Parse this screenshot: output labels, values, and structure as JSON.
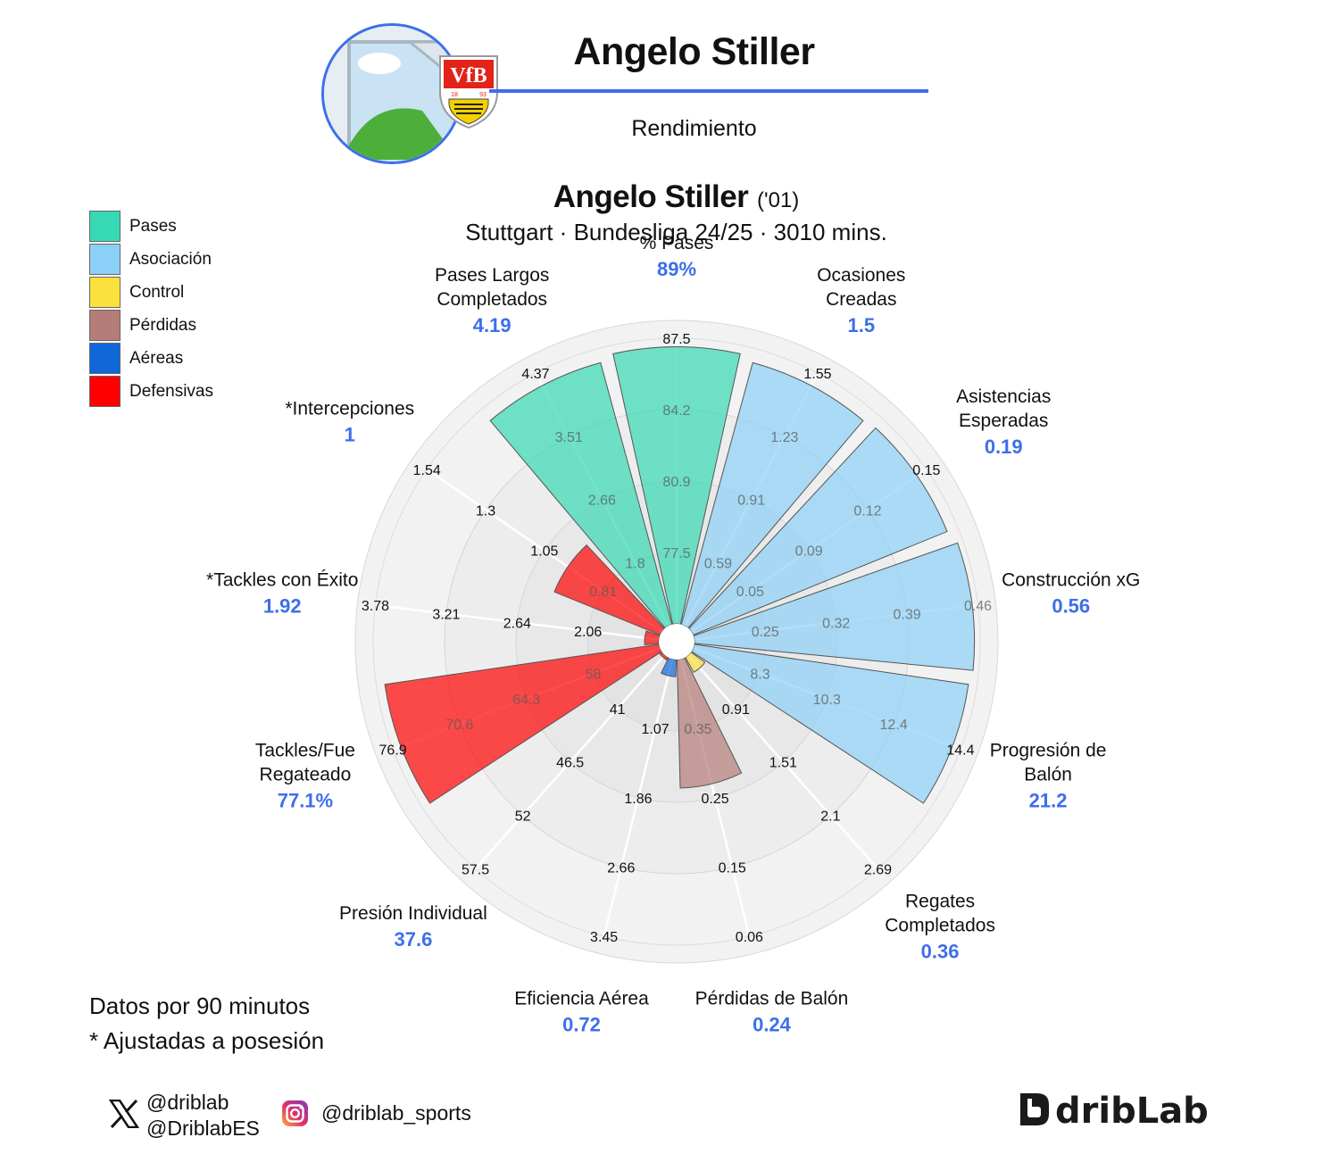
{
  "header": {
    "player_name": "Angelo Stiller",
    "section": "Rendimiento"
  },
  "chart_info": {
    "player_name": "Angelo Stiller",
    "birth_year": "('01)",
    "subtitle": "Stuttgart · Bundesliga 24/25 · 3010 mins."
  },
  "legend": [
    {
      "label": "Pases",
      "color": "#36d9b4"
    },
    {
      "label": "Asociación",
      "color": "#8bd0f7"
    },
    {
      "label": "Control",
      "color": "#fce03c"
    },
    {
      "label": "Pérdidas",
      "color": "#b57c78"
    },
    {
      "label": "Aéreas",
      "color": "#0f67da"
    },
    {
      "label": "Defensivas",
      "color": "#ff0000"
    }
  ],
  "notes": {
    "per90": "Datos por 90 minutos",
    "adjusted": "* Ajustadas a posesión"
  },
  "social": {
    "x_handle_1": "@driblab",
    "x_handle_2": "@DriblabES",
    "instagram": "@driblab_sports",
    "brand": "dribLab"
  },
  "chart_data": {
    "type": "polar-bar",
    "value_color": "#3d6fea",
    "categories": [
      {
        "label": [
          "% Pases"
        ],
        "value": "89%",
        "group": "Pases",
        "percentile": 97,
        "ticks": [
          "77.5",
          "80.9",
          "84.2",
          "87.5"
        ]
      },
      {
        "label": [
          "Ocasiones",
          "Creadas"
        ],
        "value": "1.5",
        "group": "Asociación",
        "percentile": 95,
        "ticks": [
          "0.59",
          "0.91",
          "1.23",
          "1.55"
        ]
      },
      {
        "label": [
          "Asistencias",
          "Esperadas"
        ],
        "value": "0.19",
        "group": "Asociación",
        "percentile": 96,
        "ticks": [
          "0.05",
          "0.09",
          "0.12",
          "0.15"
        ]
      },
      {
        "label": [
          "Construcción xG"
        ],
        "value": "0.56",
        "group": "Asociación",
        "percentile": 98,
        "ticks": [
          "0.25",
          "0.32",
          "0.39",
          "0.46"
        ]
      },
      {
        "label": [
          "Progresión de",
          "Balón"
        ],
        "value": "21.2",
        "group": "Asociación",
        "percentile": 97,
        "ticks": [
          "8.3",
          "10.3",
          "12.4",
          "14.4"
        ]
      },
      {
        "label": [
          "Regates",
          "Completados"
        ],
        "value": "0.36",
        "group": "Control",
        "percentile": 6,
        "ticks": [
          "0.91",
          "1.51",
          "2.1",
          "2.69"
        ]
      },
      {
        "label": [
          "Pérdidas de Balón"
        ],
        "value": "0.24",
        "group": "Pérdidas",
        "percentile": 45,
        "ticks": [
          "0.35",
          "0.25",
          "0.15",
          "0.06"
        ]
      },
      {
        "label": [
          "Eficiencia Aérea"
        ],
        "value": "0.72",
        "group": "Aéreas",
        "percentile": 6,
        "ticks": [
          "1.07",
          "1.86",
          "2.66",
          "3.45"
        ]
      },
      {
        "label": [
          "Presión Individual"
        ],
        "value": "37.6",
        "group": "Defensivas",
        "percentile": 1,
        "ticks": [
          "41",
          "46.5",
          "52",
          "57.5"
        ]
      },
      {
        "label": [
          "Tackles/Fue",
          "Regateado"
        ],
        "value": "77.1%",
        "group": "Defensivas",
        "percentile": 97,
        "ticks": [
          "58",
          "64.3",
          "70.6",
          "76.9"
        ]
      },
      {
        "label": [
          "*Tackles con Éxito"
        ],
        "value": "1.92",
        "group": "Defensivas",
        "percentile": 5,
        "ticks": [
          "2.06",
          "2.64",
          "3.21",
          "3.78"
        ]
      },
      {
        "label": [
          "*Intercepciones"
        ],
        "value": "1",
        "group": "Defensivas",
        "percentile": 40,
        "ticks": [
          "0.81",
          "1.05",
          "1.3",
          "1.54"
        ]
      },
      {
        "label": [
          "Pases Largos",
          "Completados"
        ],
        "value": "4.19",
        "group": "Pases",
        "percentile": 95,
        "ticks": [
          "1.8",
          "2.66",
          "3.51",
          "4.37"
        ]
      }
    ]
  }
}
